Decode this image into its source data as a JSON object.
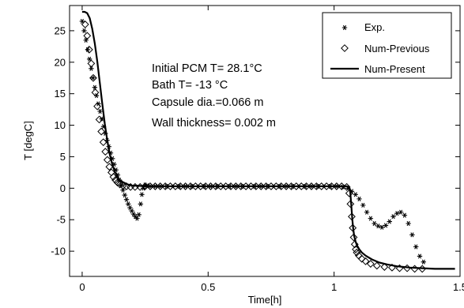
{
  "chart_data": {
    "type": "line",
    "xlabel": "Time[h]",
    "ylabel": "T [degC]",
    "xlim": [
      -0.05,
      1.5
    ],
    "ylim": [
      -14,
      29
    ],
    "xticks": [
      0,
      0.5,
      1,
      1.5
    ],
    "xtick_labels": [
      "0",
      "0.5",
      "1",
      "1.5"
    ],
    "yticks": [
      25,
      20,
      15,
      10,
      5,
      0,
      -5,
      -10
    ],
    "ytick_labels": [
      "25",
      "20",
      "15",
      "10",
      "5",
      "0",
      "-5",
      "-10"
    ],
    "grid": false,
    "legend_position": "top-right",
    "annotations": [
      "Initial PCM T= 28.1°C",
      "Bath T= -13 °C",
      "Capsule dia.=0.066 m",
      "Wall thickness= 0.002 m"
    ],
    "series": [
      {
        "name": "Exp.",
        "marker": "asterisk",
        "x": [
          0.0,
          0.008,
          0.015,
          0.022,
          0.029,
          0.036,
          0.043,
          0.05,
          0.057,
          0.064,
          0.071,
          0.078,
          0.085,
          0.092,
          0.099,
          0.106,
          0.113,
          0.12,
          0.127,
          0.134,
          0.141,
          0.148,
          0.155,
          0.162,
          0.169,
          0.176,
          0.183,
          0.19,
          0.197,
          0.204,
          0.211,
          0.218,
          0.225,
          0.232,
          0.237,
          0.243,
          0.25,
          0.258,
          0.27,
          0.29,
          0.31,
          0.335,
          0.36,
          0.385,
          0.41,
          0.435,
          0.46,
          0.485,
          0.51,
          0.535,
          0.56,
          0.585,
          0.61,
          0.635,
          0.66,
          0.685,
          0.71,
          0.735,
          0.76,
          0.785,
          0.81,
          0.835,
          0.86,
          0.885,
          0.91,
          0.935,
          0.96,
          0.985,
          1.01,
          1.035,
          1.055,
          1.07,
          1.085,
          1.1,
          1.115,
          1.13,
          1.145,
          1.16,
          1.175,
          1.19,
          1.205,
          1.22,
          1.235,
          1.25,
          1.265,
          1.28,
          1.295,
          1.31,
          1.325,
          1.34,
          1.355
        ],
        "y": [
          26.5,
          25.0,
          23.5,
          22.0,
          20.5,
          19.0,
          17.5,
          16.0,
          14.7,
          13.4,
          12.2,
          11.0,
          9.8,
          8.7,
          7.6,
          6.6,
          5.6,
          4.7,
          3.8,
          2.9,
          2.1,
          1.3,
          0.5,
          -0.3,
          -1.1,
          -1.8,
          -2.5,
          -3.1,
          -3.6,
          -4.1,
          -4.5,
          -4.8,
          -4.2,
          -2.5,
          -1.0,
          0.0,
          0.5,
          0.4,
          0.3,
          0.3,
          0.3,
          0.3,
          0.3,
          0.3,
          0.3,
          0.3,
          0.3,
          0.3,
          0.3,
          0.3,
          0.3,
          0.3,
          0.3,
          0.3,
          0.3,
          0.3,
          0.3,
          0.3,
          0.3,
          0.3,
          0.3,
          0.3,
          0.3,
          0.3,
          0.3,
          0.3,
          0.3,
          0.3,
          0.3,
          0.2,
          0.0,
          -0.5,
          -1.0,
          -1.7,
          -2.7,
          -3.8,
          -4.8,
          -5.6,
          -6.0,
          -6.2,
          -5.9,
          -5.3,
          -4.5,
          -4.0,
          -3.8,
          -4.3,
          -5.6,
          -7.4,
          -9.3,
          -10.8,
          -11.7
        ]
      },
      {
        "name": "Num-Previous",
        "marker": "diamond",
        "x": [
          0.012,
          0.02,
          0.028,
          0.036,
          0.044,
          0.052,
          0.06,
          0.068,
          0.076,
          0.084,
          0.092,
          0.1,
          0.108,
          0.116,
          0.124,
          0.132,
          0.14,
          0.15,
          0.162,
          0.176,
          0.192,
          0.21,
          0.23,
          0.25,
          0.27,
          0.29,
          0.31,
          0.33,
          0.35,
          0.37,
          0.39,
          0.41,
          0.43,
          0.45,
          0.47,
          0.49,
          0.51,
          0.53,
          0.55,
          0.57,
          0.59,
          0.61,
          0.63,
          0.65,
          0.67,
          0.69,
          0.71,
          0.73,
          0.75,
          0.77,
          0.79,
          0.81,
          0.83,
          0.85,
          0.87,
          0.89,
          0.91,
          0.93,
          0.95,
          0.97,
          0.99,
          1.01,
          1.03,
          1.05,
          1.06,
          1.065,
          1.07,
          1.074,
          1.078,
          1.082,
          1.086,
          1.09,
          1.098,
          1.11,
          1.125,
          1.145,
          1.17,
          1.2,
          1.23,
          1.26,
          1.29,
          1.32,
          1.35
        ],
        "y": [
          26.0,
          24.2,
          22.0,
          19.8,
          17.5,
          15.2,
          13.0,
          10.9,
          9.0,
          7.3,
          5.8,
          4.5,
          3.4,
          2.5,
          1.8,
          1.3,
          0.9,
          0.6,
          0.4,
          0.3,
          0.2,
          0.2,
          0.2,
          0.3,
          0.3,
          0.3,
          0.3,
          0.3,
          0.3,
          0.3,
          0.3,
          0.3,
          0.3,
          0.3,
          0.3,
          0.3,
          0.3,
          0.3,
          0.3,
          0.3,
          0.3,
          0.3,
          0.3,
          0.3,
          0.3,
          0.3,
          0.3,
          0.3,
          0.3,
          0.3,
          0.3,
          0.3,
          0.3,
          0.3,
          0.3,
          0.3,
          0.3,
          0.3,
          0.3,
          0.3,
          0.3,
          0.3,
          0.3,
          0.2,
          -0.8,
          -2.5,
          -4.5,
          -6.3,
          -7.8,
          -8.9,
          -9.7,
          -10.2,
          -10.7,
          -11.2,
          -11.6,
          -12.0,
          -12.3,
          -12.5,
          -12.6,
          -12.7,
          -12.7,
          -12.8,
          -12.8
        ]
      },
      {
        "name": "Num-Present",
        "marker": "none",
        "x": [
          0.0,
          0.01,
          0.02,
          0.03,
          0.04,
          0.05,
          0.06,
          0.07,
          0.08,
          0.09,
          0.1,
          0.11,
          0.12,
          0.13,
          0.14,
          0.15,
          0.16,
          0.17,
          0.18,
          0.19,
          0.2,
          0.22,
          0.25,
          0.3,
          0.4,
          0.5,
          0.6,
          0.7,
          0.8,
          0.9,
          1.0,
          1.05,
          1.06,
          1.064,
          1.068,
          1.072,
          1.076,
          1.08,
          1.085,
          1.09,
          1.1,
          1.11,
          1.125,
          1.15,
          1.18,
          1.21,
          1.25,
          1.3,
          1.35,
          1.4,
          1.45,
          1.48
        ],
        "y": [
          28.0,
          28.0,
          27.8,
          27.0,
          25.3,
          23.0,
          20.1,
          16.8,
          13.4,
          10.2,
          7.5,
          5.3,
          3.7,
          2.6,
          1.8,
          1.3,
          1.0,
          0.8,
          0.6,
          0.5,
          0.4,
          0.4,
          0.3,
          0.3,
          0.3,
          0.3,
          0.3,
          0.3,
          0.3,
          0.3,
          0.3,
          0.3,
          0.2,
          -0.5,
          -2.5,
          -4.8,
          -6.5,
          -7.6,
          -8.4,
          -9.0,
          -9.7,
          -10.2,
          -10.7,
          -11.3,
          -11.8,
          -12.1,
          -12.4,
          -12.6,
          -12.7,
          -12.8,
          -12.8,
          -12.8
        ]
      }
    ]
  }
}
